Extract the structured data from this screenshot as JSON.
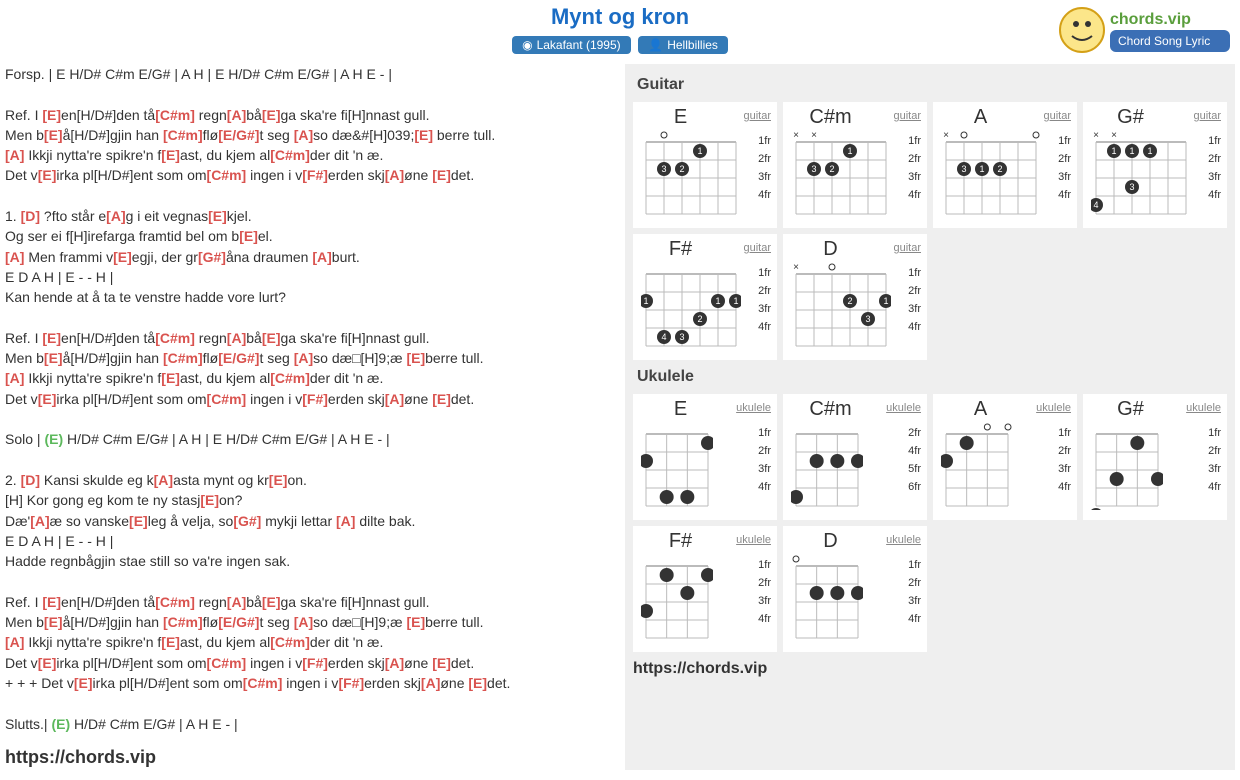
{
  "title": "Mynt og kron",
  "badge1": "Lakafant (1995)",
  "badge2": "Hellbillies",
  "url": "https://chords.vip",
  "lyrics_url": "https://chords.vip",
  "lines": [
    {
      "t": "plain",
      "text": "Forsp. | E H/D# C#m E/G# | A H | E H/D# C#m E/G# | A H E - |"
    },
    {
      "t": "blank"
    },
    {
      "t": "mix",
      "parts": [
        "Ref. I ",
        "[E]",
        "en[H/D#]den tå",
        "[C#m]",
        " regn",
        "[A]",
        "bå",
        "[E]",
        "ga ska're fi[H]nnast gull."
      ]
    },
    {
      "t": "mix",
      "parts": [
        "Men b",
        "[E]",
        "å[H/D#]gjin han ",
        "[C#m]",
        "flø",
        "[E/G#]",
        "t seg ",
        "[A]",
        "so dæ&#[H]039;",
        "[E]",
        " berre tull."
      ]
    },
    {
      "t": "mix",
      "parts": [
        "",
        "[A]",
        " Ikkji nytta're spikre'n f",
        "[E]",
        "ast, du kjem al",
        "[C#m]",
        "der dit 'n æ."
      ]
    },
    {
      "t": "mix",
      "parts": [
        "Det v",
        "[E]",
        "irka pl[H/D#]ent som om",
        "[C#m]",
        " ingen i v",
        "[F#]",
        "erden skj",
        "[A]",
        "øne ",
        "[E]",
        "det."
      ]
    },
    {
      "t": "blank"
    },
    {
      "t": "mix",
      "parts": [
        "1. ",
        "[D]",
        " ?fto står e",
        "[A]",
        "g i eit vegnas",
        "[E]",
        "kjel."
      ]
    },
    {
      "t": "mix",
      "parts": [
        "Og ser ei f[H]irefarga framtid bel om b",
        "[E]",
        "el."
      ]
    },
    {
      "t": "mix",
      "parts": [
        "",
        "[A]",
        " Men frammi v",
        "[E]",
        "egji, der gr",
        "[G#]",
        "åna draumen ",
        "[A]",
        "burt."
      ]
    },
    {
      "t": "plain",
      "text": "E D A H | E - - H |"
    },
    {
      "t": "plain",
      "text": "Kan hende at å ta te venstre hadde vore lurt?"
    },
    {
      "t": "blank"
    },
    {
      "t": "mix",
      "parts": [
        "Ref. I ",
        "[E]",
        "en[H/D#]den tå",
        "[C#m]",
        " regn",
        "[A]",
        "bå",
        "[E]",
        "ga ska're fi[H]nnast gull."
      ]
    },
    {
      "t": "mix",
      "parts": [
        "Men b",
        "[E]",
        "å[H/D#]gjin han ",
        "[C#m]",
        "flø",
        "[E/G#]",
        "t seg ",
        "[A]",
        "so dæ□[H]9;æ ",
        "[E]",
        "berre tull."
      ]
    },
    {
      "t": "mix",
      "parts": [
        "",
        "[A]",
        " Ikkji nytta're spikre'n f",
        "[E]",
        "ast, du kjem al",
        "[C#m]",
        "der dit 'n æ."
      ]
    },
    {
      "t": "mix",
      "parts": [
        "Det v",
        "[E]",
        "irka pl[H/D#]ent som om",
        "[C#m]",
        " ingen i v",
        "[F#]",
        "erden skj",
        "[A]",
        "øne ",
        "[E]",
        "det."
      ]
    },
    {
      "t": "blank"
    },
    {
      "t": "mix",
      "parts": [
        "Solo | ",
        "(E)",
        " H/D# C#m E/G# | A H | E H/D# C#m E/G# | A H E - |"
      ]
    },
    {
      "t": "blank"
    },
    {
      "t": "mix",
      "parts": [
        "2. ",
        "[D]",
        " Kansi skulde eg k",
        "[A]",
        "asta mynt og kr",
        "[E]",
        "on."
      ]
    },
    {
      "t": "mix",
      "parts": [
        "[H] Kor gong eg kom te ny stasj",
        "[E]",
        "on?"
      ]
    },
    {
      "t": "mix",
      "parts": [
        "Dæ'",
        "[A]",
        "æ so vanske",
        "[E]",
        "leg å velja, so",
        "[G#]",
        " mykji lettar ",
        "[A]",
        " dilte bak."
      ]
    },
    {
      "t": "plain",
      "text": "E D A H | E - - H |"
    },
    {
      "t": "plain",
      "text": "Hadde regnbågjin stae still so va're ingen sak."
    },
    {
      "t": "blank"
    },
    {
      "t": "mix",
      "parts": [
        "Ref. I ",
        "[E]",
        "en[H/D#]den tå",
        "[C#m]",
        " regn",
        "[A]",
        "bå",
        "[E]",
        "ga ska're fi[H]nnast gull."
      ]
    },
    {
      "t": "mix",
      "parts": [
        "Men b",
        "[E]",
        "å[H/D#]gjin han ",
        "[C#m]",
        "flø",
        "[E/G#]",
        "t seg ",
        "[A]",
        "so dæ□[H]9;æ ",
        "[E]",
        "berre tull."
      ]
    },
    {
      "t": "mix",
      "parts": [
        "",
        "[A]",
        " Ikkji nytta're spikre'n f",
        "[E]",
        "ast, du kjem al",
        "[C#m]",
        "der dit 'n æ."
      ]
    },
    {
      "t": "mix",
      "parts": [
        "Det v",
        "[E]",
        "irka pl[H/D#]ent som om",
        "[C#m]",
        " ingen i v",
        "[F#]",
        "erden skj",
        "[A]",
        "øne ",
        "[E]",
        "det."
      ]
    },
    {
      "t": "mix",
      "parts": [
        "+ + + Det v",
        "[E]",
        "irka pl[H/D#]ent som om",
        "[C#m]",
        " ingen i v",
        "[F#]",
        "erden skj",
        "[A]",
        "øne ",
        "[E]",
        "det."
      ]
    },
    {
      "t": "blank"
    },
    {
      "t": "mix",
      "parts": [
        "Slutts.| ",
        "(E)",
        " H/D# C#m E/G# | A H E - |"
      ]
    }
  ],
  "guitar_label": "Guitar",
  "ukulele_label": "Ukulele",
  "guitar_chords": [
    {
      "name": "E",
      "instr": "guitar",
      "strings": 6,
      "open": [
        0,
        1,
        0,
        0,
        0,
        0
      ],
      "mute": [
        0,
        0,
        0,
        0,
        0,
        0
      ],
      "dots": [
        {
          "f": 1,
          "s": 3,
          "n": "1"
        },
        {
          "f": 2,
          "s": 4,
          "n": "2"
        },
        {
          "f": 2,
          "s": 5,
          "n": "3"
        }
      ],
      "frets": [
        "1fr",
        "2fr",
        "3fr",
        "4fr"
      ]
    },
    {
      "name": "C#m",
      "instr": "guitar",
      "strings": 6,
      "open": [
        0,
        0,
        0,
        0,
        0,
        0
      ],
      "mute": [
        1,
        1,
        0,
        0,
        0,
        0
      ],
      "dots": [
        {
          "f": 1,
          "s": 3,
          "n": "1"
        },
        {
          "f": 2,
          "s": 4,
          "n": "2"
        },
        {
          "f": 2,
          "s": 5,
          "n": "3"
        }
      ],
      "frets": [
        "1fr",
        "2fr",
        "3fr",
        "4fr"
      ]
    },
    {
      "name": "A",
      "instr": "guitar",
      "strings": 6,
      "open": [
        0,
        1,
        0,
        0,
        0,
        1
      ],
      "mute": [
        1,
        0,
        0,
        0,
        0,
        0
      ],
      "dots": [
        {
          "f": 2,
          "s": 3,
          "n": "2"
        },
        {
          "f": 2,
          "s": 4,
          "n": "1"
        },
        {
          "f": 2,
          "s": 5,
          "n": "3"
        }
      ],
      "frets": [
        "1fr",
        "2fr",
        "3fr",
        "4fr"
      ]
    },
    {
      "name": "G#",
      "instr": "guitar",
      "strings": 6,
      "open": [
        0,
        0,
        0,
        0,
        0,
        0
      ],
      "mute": [
        1,
        1,
        0,
        0,
        0,
        0
      ],
      "dots": [
        {
          "f": 1,
          "s": 3,
          "n": "1"
        },
        {
          "f": 1,
          "s": 4,
          "n": "1"
        },
        {
          "f": 1,
          "s": 5,
          "n": "1"
        },
        {
          "f": 3,
          "s": 4,
          "n": "3"
        },
        {
          "f": 4,
          "s": 6,
          "n": "4"
        }
      ],
      "frets": [
        "1fr",
        "2fr",
        "3fr",
        "4fr"
      ]
    },
    {
      "name": "F#",
      "instr": "guitar",
      "strings": 6,
      "open": [
        0,
        0,
        0,
        0,
        0,
        0
      ],
      "mute": [
        0,
        0,
        0,
        0,
        0,
        0
      ],
      "dots": [
        {
          "f": 2,
          "s": 1,
          "n": "1"
        },
        {
          "f": 2,
          "s": 2,
          "n": "1"
        },
        {
          "f": 2,
          "s": 6,
          "n": "1"
        },
        {
          "f": 3,
          "s": 3,
          "n": "2"
        },
        {
          "f": 4,
          "s": 4,
          "n": "3"
        },
        {
          "f": 4,
          "s": 5,
          "n": "4"
        }
      ],
      "frets": [
        "1fr",
        "2fr",
        "3fr",
        "4fr"
      ]
    },
    {
      "name": "D",
      "instr": "guitar",
      "strings": 6,
      "open": [
        0,
        0,
        1,
        0,
        0,
        0
      ],
      "mute": [
        1,
        0,
        0,
        0,
        0,
        0
      ],
      "dots": [
        {
          "f": 2,
          "s": 1,
          "n": "1"
        },
        {
          "f": 2,
          "s": 3,
          "n": "2"
        },
        {
          "f": 3,
          "s": 2,
          "n": "3"
        }
      ],
      "frets": [
        "1fr",
        "2fr",
        "3fr",
        "4fr"
      ]
    }
  ],
  "uke_chords": [
    {
      "name": "E",
      "instr": "ukulele",
      "strings": 4,
      "open": [
        0,
        0,
        0,
        0
      ],
      "mute": [
        0,
        0,
        0,
        0
      ],
      "dots": [
        {
          "f": 1,
          "s": 1,
          "n": ""
        },
        {
          "f": 2,
          "s": 4,
          "n": ""
        },
        {
          "f": 4,
          "s": 2,
          "n": ""
        },
        {
          "f": 4,
          "s": 3,
          "n": ""
        }
      ],
      "frets": [
        "1fr",
        "2fr",
        "3fr",
        "4fr"
      ]
    },
    {
      "name": "C#m",
      "instr": "ukulele",
      "strings": 4,
      "open": [
        0,
        0,
        0,
        0
      ],
      "mute": [
        0,
        0,
        0,
        0
      ],
      "dots": [
        {
          "f": 2,
          "s": 1,
          "n": ""
        },
        {
          "f": 2,
          "s": 2,
          "n": ""
        },
        {
          "f": 2,
          "s": 3,
          "n": ""
        },
        {
          "f": 4,
          "s": 4,
          "n": ""
        }
      ],
      "frets": [
        "2fr",
        "4fr",
        "5fr",
        "6fr"
      ],
      "nut": false
    },
    {
      "name": "A",
      "instr": "ukulele",
      "strings": 4,
      "open": [
        0,
        0,
        1,
        1
      ],
      "mute": [
        0,
        0,
        0,
        0
      ],
      "dots": [
        {
          "f": 1,
          "s": 3,
          "n": ""
        },
        {
          "f": 2,
          "s": 4,
          "n": ""
        }
      ],
      "frets": [
        "1fr",
        "2fr",
        "3fr",
        "4fr"
      ]
    },
    {
      "name": "G#",
      "instr": "ukulele",
      "strings": 4,
      "open": [
        0,
        0,
        0,
        0
      ],
      "mute": [
        0,
        0,
        0,
        0
      ],
      "dots": [
        {
          "f": 1,
          "s": 2,
          "n": ""
        },
        {
          "f": 3,
          "s": 1,
          "n": ""
        },
        {
          "f": 3,
          "s": 3,
          "n": ""
        },
        {
          "f": 5,
          "s": 4,
          "n": ""
        }
      ],
      "frets": [
        "1fr",
        "2fr",
        "3fr",
        "4fr"
      ]
    },
    {
      "name": "F#",
      "instr": "ukulele",
      "strings": 4,
      "open": [
        0,
        0,
        0,
        0
      ],
      "mute": [
        0,
        0,
        0,
        0
      ],
      "dots": [
        {
          "f": 1,
          "s": 1,
          "n": ""
        },
        {
          "f": 1,
          "s": 3,
          "n": ""
        },
        {
          "f": 2,
          "s": 2,
          "n": ""
        },
        {
          "f": 3,
          "s": 4,
          "n": ""
        }
      ],
      "frets": [
        "1fr",
        "2fr",
        "3fr",
        "4fr"
      ]
    },
    {
      "name": "D",
      "instr": "ukulele",
      "strings": 4,
      "open": [
        1,
        0,
        0,
        0
      ],
      "mute": [
        0,
        0,
        0,
        0
      ],
      "dots": [
        {
          "f": 2,
          "s": 1,
          "n": ""
        },
        {
          "f": 2,
          "s": 2,
          "n": ""
        },
        {
          "f": 2,
          "s": 3,
          "n": ""
        }
      ],
      "frets": [
        "1fr",
        "2fr",
        "3fr",
        "4fr"
      ]
    }
  ]
}
